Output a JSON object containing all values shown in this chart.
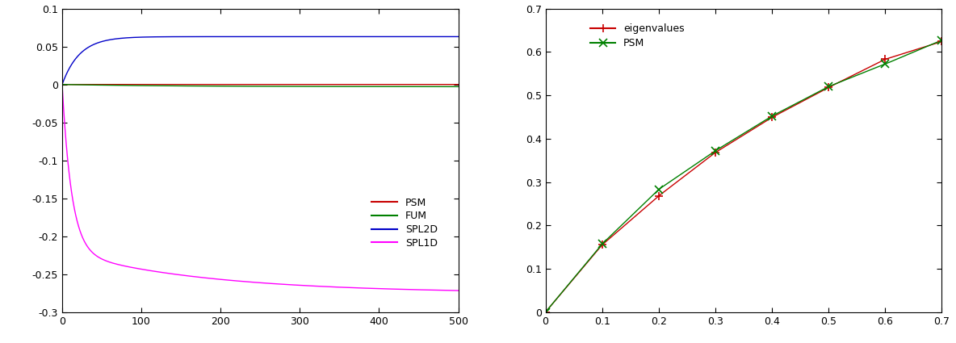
{
  "left_plot": {
    "xlim": [
      0,
      500
    ],
    "ylim": [
      -0.3,
      0.1
    ],
    "xticks": [
      0,
      100,
      200,
      300,
      400,
      500
    ],
    "yticks": [
      -0.3,
      -0.25,
      -0.2,
      -0.15,
      -0.1,
      -0.05,
      0.0,
      0.05,
      0.1
    ],
    "yticklabels": [
      "-0.3",
      "-0.25",
      "-0.2",
      "-0.15",
      "-0.1",
      "-0.05",
      "0",
      "0.05",
      "0.1"
    ],
    "PSM_color": "#c80000",
    "FUM_color": "#008000",
    "SPL2D_color": "#0000c8",
    "SPL1D_color": "#ff00ff",
    "legend_labels": [
      "PSM",
      "FUM",
      "SPL2D",
      "SPL1D"
    ],
    "legend_colors": [
      "#c80000",
      "#008000",
      "#0000c8",
      "#ff00ff"
    ]
  },
  "right_plot": {
    "xlim": [
      0,
      0.7
    ],
    "ylim": [
      0,
      0.7
    ],
    "xticks": [
      0,
      0.1,
      0.2,
      0.3,
      0.4,
      0.5,
      0.6,
      0.7
    ],
    "yticks": [
      0,
      0.1,
      0.2,
      0.3,
      0.4,
      0.5,
      0.6,
      0.7
    ],
    "xticklabels": [
      "0",
      "0.1",
      "0.2",
      "0.3",
      "0.4",
      "0.5",
      "0.6",
      "0.7"
    ],
    "yticklabels": [
      "0",
      "0.1",
      "0.2",
      "0.3",
      "0.4",
      "0.5",
      "0.6",
      "0.7"
    ],
    "eigenvalues_x": [
      0.0,
      0.1,
      0.2,
      0.3,
      0.4,
      0.5,
      0.6,
      0.7
    ],
    "eigenvalues_y": [
      0.0,
      0.155,
      0.268,
      0.368,
      0.449,
      0.518,
      0.583,
      0.624
    ],
    "PSM_x": [
      0.0,
      0.1,
      0.2,
      0.3,
      0.4,
      0.5,
      0.6,
      0.7
    ],
    "PSM_y": [
      0.0,
      0.157,
      0.283,
      0.372,
      0.452,
      0.52,
      0.572,
      0.627
    ],
    "eigenvalues_color": "#c80000",
    "PSM_color": "#008000",
    "legend_labels": [
      "eigenvalues",
      "PSM"
    ],
    "legend_colors": [
      "#c80000",
      "#008000"
    ]
  }
}
